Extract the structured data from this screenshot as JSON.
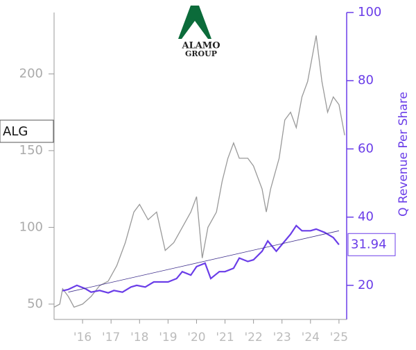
{
  "chart_data": {
    "type": "line",
    "ticker": "ALG",
    "logo": [
      "ALAMO",
      "GROUP"
    ],
    "y2_label": "Q Revenue Per Share",
    "xlim": [
      2015,
      2025.27
    ],
    "xticks": [
      {
        "value": 2016,
        "label": "'16"
      },
      {
        "value": 2017,
        "label": "'17"
      },
      {
        "value": 2018,
        "label": "'18"
      },
      {
        "value": 2019,
        "label": "'19"
      },
      {
        "value": 2020,
        "label": "'20"
      },
      {
        "value": 2021,
        "label": "'21"
      },
      {
        "value": 2022,
        "label": "'22"
      },
      {
        "value": 2023,
        "label": "'23"
      },
      {
        "value": 2024,
        "label": "'24"
      },
      {
        "value": 2025,
        "label": "'25"
      }
    ],
    "ylim": [
      40,
      240
    ],
    "yticks": [
      50,
      100,
      150,
      200
    ],
    "y2lim": [
      10,
      100
    ],
    "y2ticks": [
      20,
      40,
      60,
      80,
      100
    ],
    "series": [
      {
        "color": "#999999",
        "axis": "y",
        "x": [
          2015.0,
          2015.2,
          2015.3,
          2015.5,
          2015.7,
          2016.0,
          2016.3,
          2016.6,
          2016.9,
          2017.2,
          2017.5,
          2017.8,
          2018.0,
          2018.3,
          2018.6,
          2018.9,
          2019.2,
          2019.5,
          2019.8,
          2020.0,
          2020.2,
          2020.4,
          2020.7,
          2020.9,
          2021.1,
          2021.3,
          2021.5,
          2021.8,
          2022.0,
          2022.3,
          2022.45,
          2022.6,
          2022.9,
          2023.1,
          2023.3,
          2023.5,
          2023.7,
          2023.9,
          2024.1,
          2024.2,
          2024.4,
          2024.6,
          2024.8,
          2025.0,
          2025.2
        ],
        "values": [
          48,
          50,
          60,
          55,
          48,
          50,
          55,
          62,
          65,
          75,
          90,
          110,
          115,
          105,
          110,
          85,
          90,
          100,
          110,
          120,
          80,
          100,
          110,
          130,
          145,
          155,
          145,
          145,
          140,
          125,
          110,
          125,
          145,
          170,
          175,
          165,
          185,
          195,
          215,
          225,
          195,
          175,
          185,
          180,
          160
        ]
      },
      {
        "color": "#6a3de8",
        "axis": "y2",
        "x": [
          2015.3,
          2015.5,
          2015.8,
          2016.1,
          2016.3,
          2016.6,
          2016.9,
          2017.1,
          2017.4,
          2017.7,
          2017.9,
          2018.2,
          2018.5,
          2018.7,
          2019.0,
          2019.3,
          2019.5,
          2019.8,
          2020.0,
          2020.3,
          2020.5,
          2020.8,
          2021.0,
          2021.3,
          2021.5,
          2021.8,
          2022.0,
          2022.3,
          2022.5,
          2022.8,
          2023.0,
          2023.3,
          2023.5,
          2023.7,
          2024.0,
          2024.2,
          2024.5,
          2024.8,
          2025.0
        ],
        "values": [
          18.4,
          18.8,
          20,
          19,
          18,
          18.5,
          17.8,
          18.5,
          18,
          19.5,
          20,
          19.5,
          21,
          21,
          21,
          22,
          24,
          23,
          25.5,
          26.5,
          22,
          24,
          24,
          25,
          28,
          27,
          27.5,
          30,
          33,
          30,
          32,
          35,
          37.5,
          36,
          36,
          36.5,
          35.5,
          34,
          31.94
        ]
      },
      {
        "color": "#3a2a8a",
        "axis": "y2",
        "x": [
          2015.5,
          2025.0
        ],
        "values": [
          18,
          36
        ]
      }
    ]
  }
}
